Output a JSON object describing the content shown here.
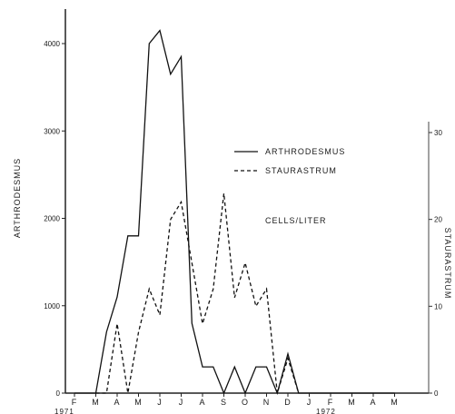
{
  "chart_data": {
    "type": "line",
    "title": "",
    "note": "CELLS/LITER",
    "month_labels": [
      "F",
      "M",
      "A",
      "M",
      "J",
      "J",
      "A",
      "S",
      "O",
      "N",
      "D",
      "J",
      "F",
      "M",
      "A",
      "M"
    ],
    "year_labels": [
      "1971",
      "1972"
    ],
    "left_axis": {
      "label": "ARTHRODESMUS",
      "ylim": [
        0,
        4000
      ],
      "ticks": [
        0,
        1000,
        2000,
        3000,
        4000
      ]
    },
    "right_axis": {
      "label": "STAURASTRUM",
      "ylim": [
        0,
        30
      ],
      "ticks": [
        0,
        10,
        20,
        30
      ]
    },
    "legend": [
      {
        "name": "ARTHRODESMUS",
        "style": "solid"
      },
      {
        "name": "STAURASTRUM",
        "style": "dashed"
      }
    ],
    "series": [
      {
        "name": "ARTHRODESMUS",
        "axis": "left",
        "style": "solid",
        "x": [
          0,
          0.5,
          1.0,
          1.5,
          2.0,
          2.5,
          3.0,
          3.5,
          4.0,
          4.5,
          5.0,
          5.5,
          6.0,
          6.5,
          7.0,
          7.5,
          8.0,
          8.5,
          9.0,
          9.5,
          10.0,
          10.5,
          11.0,
          11.5,
          12.0,
          13.0,
          14.0,
          15.0
        ],
        "values": [
          0,
          0,
          0,
          700,
          1100,
          1800,
          1800,
          4000,
          4150,
          3650,
          3850,
          800,
          300,
          300,
          0,
          300,
          0,
          300,
          300,
          0,
          450,
          0,
          0,
          0,
          0,
          0,
          0,
          0
        ]
      },
      {
        "name": "STAURASTRUM",
        "axis": "right",
        "style": "dashed",
        "x": [
          1.0,
          1.5,
          2.0,
          2.5,
          3.0,
          3.5,
          4.0,
          4.5,
          5.0,
          5.5,
          6.0,
          6.5,
          7.0,
          7.5,
          8.0,
          8.5,
          9.0,
          9.5,
          10.0,
          10.5
        ],
        "values": [
          0,
          0,
          8,
          0,
          7,
          12,
          9,
          20,
          22,
          15,
          8,
          12,
          23,
          11,
          15,
          10,
          12,
          0,
          4,
          0
        ]
      }
    ]
  }
}
